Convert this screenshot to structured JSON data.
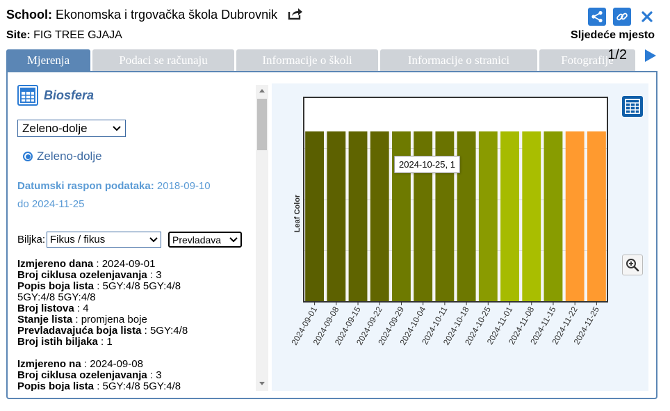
{
  "header": {
    "school_label": "School:",
    "school_name": "Ekonomska i trgovačka škola Dubrovnik",
    "site_label": "Site:",
    "site_name": "FIG TREE GJAJA",
    "next_place": "Sljedeće mjesto",
    "pager": "1/2"
  },
  "icons": {
    "share": "share-icon",
    "link": "link-icon",
    "close": "close-icon",
    "export": "export-icon"
  },
  "tabs": [
    {
      "label": "Mjerenja",
      "active": true
    },
    {
      "label": "Podaci se računaju",
      "active": false
    },
    {
      "label": "Informacije o školi",
      "active": false
    },
    {
      "label": "Informacije o stranici",
      "active": false
    },
    {
      "label": "Fotografije",
      "active": false
    }
  ],
  "left": {
    "sphere": "Biosfera",
    "site_select": "Zeleno-dolje",
    "radio_label": "Zeleno-dolje",
    "date_range_label": "Datumski raspon podataka:",
    "date_range_from": "2018-09-10",
    "date_range_to_word": "do",
    "date_range_to": "2024-11-25",
    "plant_label": "Biljka:",
    "plant_select": "Fikus / fikus",
    "dominant_select": "Prevladava"
  },
  "records": [
    {
      "measured_label": "Izmjereno dana",
      "measured_value": "2024-09-01",
      "cycles_label": "Broj ciklusa ozelenjavanja",
      "cycles_value": "3",
      "colors_label": "Popis boja lista",
      "colors_value": "5GY:4/8 5GY:4/8",
      "colors_cont": "5GY:4/8 5GY:4/8",
      "leaves_label": "Broj listova",
      "leaves_value": "4",
      "state_label": "Stanje lista",
      "state_value": "promjena boje",
      "dominant_label": "Prevladavajuća boja lista",
      "dominant_value": "5GY:4/8",
      "same_label": "Broj istih biljaka",
      "same_value": "1"
    },
    {
      "measured_label": "Izmjereno na",
      "measured_value": "2024-09-08",
      "cycles_label": "Broj ciklusa ozelenjavanja",
      "cycles_value": "3",
      "colors_label": "Popis boja lista",
      "colors_value": "5GY:4/8 5GY:4/8"
    }
  ],
  "chart_data": {
    "type": "bar",
    "ylabel": "Leaf Color",
    "categories": [
      "2024-09-01",
      "2024-09-08",
      "2024-09-15",
      "2024-09-22",
      "2024-09-29",
      "2024-10-04",
      "2024-10-11",
      "2024-10-18",
      "2024-10-25",
      "2024-11-01",
      "2024-11-08",
      "2024-11-15",
      "2024-11-22",
      "2024-11-25"
    ],
    "values": [
      1,
      1,
      1,
      1,
      1,
      1,
      1,
      1,
      1,
      1,
      1,
      1,
      1,
      1
    ],
    "colors": [
      "#5a5f00",
      "#5d6100",
      "#5f6400",
      "#626600",
      "#6e7a00",
      "#6a7300",
      "#6a7300",
      "#6d7800",
      "#8a9b00",
      "#a6bb00",
      "#a9be00",
      "#889c00",
      "#ff9a2f",
      "#ff9a2f"
    ],
    "ylim": [
      0,
      1.2
    ],
    "grid": true,
    "tooltip": "2024-10-25, 1"
  }
}
